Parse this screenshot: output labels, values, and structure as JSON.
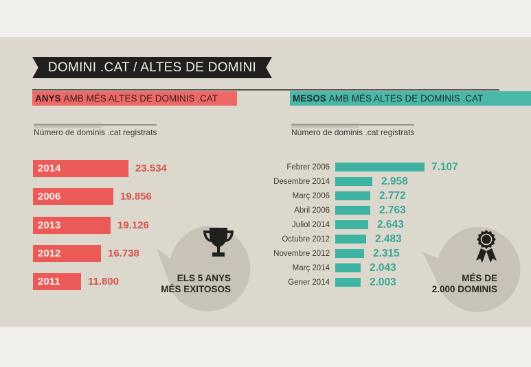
{
  "title": "DOMINI .CAT  /  ALTES DE DOMINI",
  "left_section": {
    "header_bold": "ANYS",
    "header_rest": "AMB MÉS ALTES DE DOMINIS .CAT",
    "subheader": "Número de dominis .cat registrats",
    "bubble_line1": "ELS 5 ANYS",
    "bubble_line2": "MÉS EXITOSOS",
    "bubble_icon": "trophy-icon"
  },
  "right_section": {
    "header_bold": "MESOS",
    "header_rest": "AMB MÉS ALTES DE DOMINIS .CAT",
    "subheader": "Número de dominis .cat registrats",
    "bubble_line1": "MÉS DE",
    "bubble_line2": "2.000 DOMINIS",
    "bubble_icon": "award-ribbon-icon"
  },
  "colors": {
    "years_accent": "#ec5a58",
    "months_accent": "#3fb3a2",
    "banner": "#221f1f",
    "panel": "#dcd8cd",
    "bubble": "#c8c2b8"
  },
  "chart_data": [
    {
      "type": "bar",
      "orientation": "horizontal",
      "title": "ANYS AMB MÉS ALTES DE DOMINIS .CAT",
      "xlabel": "Número de dominis .cat registrats",
      "ylabel": "",
      "categories": [
        "2014",
        "2006",
        "2013",
        "2012",
        "2011"
      ],
      "values": [
        23534,
        19856,
        19126,
        16738,
        11800
      ],
      "value_labels": [
        "23.534",
        "19.856",
        "19.126",
        "16.738",
        "11.800"
      ],
      "grid": false,
      "legend": "none",
      "annotation": "ELS 5 ANYS MÉS EXITOSOS"
    },
    {
      "type": "bar",
      "orientation": "horizontal",
      "title": "MESOS AMB MÉS ALTES DE DOMINIS .CAT",
      "xlabel": "Número de dominis .cat registrats",
      "ylabel": "",
      "categories": [
        "Febrer 2006",
        "Desembre 2014",
        "Març 2006",
        "Abril 2006",
        "Juliol 2014",
        "Octubre 2012",
        "Novembre 2012",
        "Març 2014",
        "Gener 2014"
      ],
      "values": [
        7107,
        2958,
        2772,
        2763,
        2643,
        2483,
        2315,
        2043,
        2003
      ],
      "value_labels": [
        "7.107",
        "2.958",
        "2.772",
        "2.763",
        "2.643",
        "2.483",
        "2.315",
        "2.043",
        "2.003"
      ],
      "grid": false,
      "legend": "none",
      "annotation": "MÉS DE 2.000 DOMINIS"
    }
  ]
}
